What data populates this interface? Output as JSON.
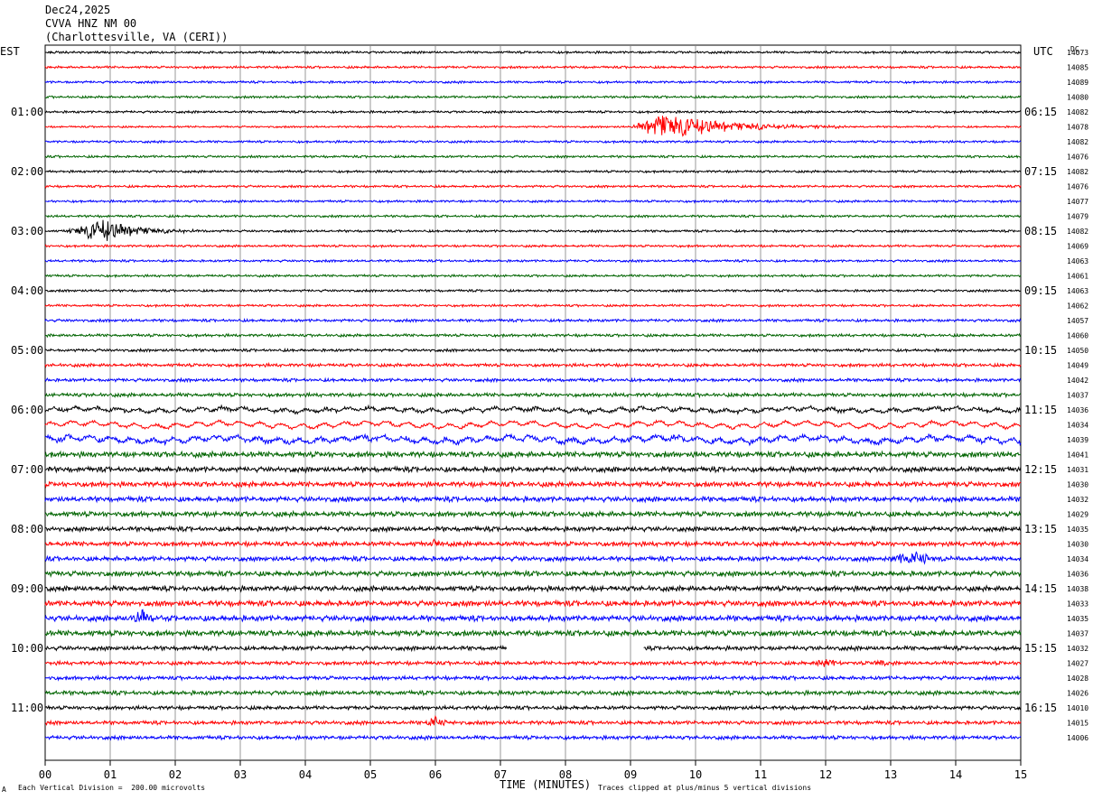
{
  "header": {
    "date": "Dec24,2025",
    "station": "CVVA HNZ NM 00",
    "location": "(Charlottesville, VA (CERI))"
  },
  "left_axis_label": "EST",
  "right_axis_label": "UTC",
  "dc_label": "DC",
  "xlabel": "TIME (MINUTES)",
  "footer_left": "Each Vertical Division =  200.00 microvolts",
  "footer_right": "Traces clipped at plus/minus 5 vertical divisions",
  "corner_mark": "A",
  "colors": {
    "black": "#000000",
    "red": "#ff0000",
    "blue": "#0000ff",
    "green": "#006400",
    "grid": "#808080"
  },
  "chart_data": {
    "type": "line",
    "xlabel": "TIME (MINUTES)",
    "xlim": [
      0,
      15
    ],
    "x_ticks": [
      "00",
      "01",
      "02",
      "03",
      "04",
      "05",
      "06",
      "07",
      "08",
      "09",
      "10",
      "11",
      "12",
      "13",
      "14",
      "15"
    ],
    "trace_color_cycle": [
      "black",
      "red",
      "blue",
      "green"
    ],
    "est_hour_labels": [
      "01:00",
      "02:00",
      "03:00",
      "04:00",
      "05:00",
      "06:00",
      "07:00",
      "08:00",
      "09:00",
      "10:00",
      "11:00"
    ],
    "utc_hour_labels": [
      "06:15",
      "07:15",
      "08:15",
      "09:15",
      "10:15",
      "11:15",
      "12:15",
      "13:15",
      "14:15",
      "15:15",
      "16:15"
    ],
    "dc_offsets": [
      "14073",
      "14085",
      "14089",
      "14080",
      "14082",
      "14078",
      "14082",
      "14076",
      "14082",
      "14076",
      "14077",
      "14079",
      "14082",
      "14069",
      "14063",
      "14061",
      "14063",
      "14062",
      "14057",
      "14060",
      "14050",
      "14049",
      "14042",
      "14037",
      "14036",
      "14034",
      "14039",
      "14041",
      "14031",
      "14030",
      "14032",
      "14029",
      "14035",
      "14030",
      "14034",
      "14036",
      "14038",
      "14033",
      "14035",
      "14037",
      "14032",
      "14027",
      "14028",
      "14026",
      "14010",
      "14015",
      "14006"
    ],
    "trace_noise_level": [
      0.5,
      0.5,
      0.5,
      0.5,
      0.5,
      0.4,
      0.5,
      0.5,
      0.5,
      0.5,
      0.5,
      0.5,
      0.5,
      0.5,
      0.5,
      0.5,
      0.5,
      0.5,
      0.6,
      0.6,
      0.6,
      0.7,
      0.7,
      0.8,
      0.8,
      0.6,
      1.0,
      1.2,
      1.1,
      1.1,
      1.1,
      1.1,
      1.0,
      1.0,
      1.0,
      1.1,
      1.1,
      1.2,
      1.2,
      1.2,
      0.9,
      0.8,
      0.8,
      0.9,
      0.8,
      0.8,
      0.8
    ],
    "events": [
      {
        "trace": 5,
        "start_min": 9.0,
        "end_min": 12.5,
        "peak_min": 9.5,
        "amplitude": 14
      },
      {
        "trace": 12,
        "start_min": 0.3,
        "end_min": 2.5,
        "peak_min": 0.9,
        "amplitude": 12
      },
      {
        "trace": 34,
        "start_min": 12.8,
        "end_min": 14.0,
        "peak_min": 13.4,
        "amplitude": 7
      },
      {
        "trace": 38,
        "start_min": 1.3,
        "end_min": 1.9,
        "peak_min": 1.5,
        "amplitude": 10
      },
      {
        "trace": 41,
        "start_min": 11.8,
        "end_min": 12.4,
        "peak_min": 12.0,
        "amplitude": 6
      },
      {
        "trace": 41,
        "start_min": 12.7,
        "end_min": 13.0,
        "peak_min": 12.85,
        "amplitude": 7
      },
      {
        "trace": 45,
        "start_min": 5.8,
        "end_min": 6.3,
        "peak_min": 6.0,
        "amplitude": 7
      },
      {
        "trace": 33,
        "start_min": 5.9,
        "end_min": 6.2,
        "peak_min": 6.0,
        "amplitude": 5
      }
    ],
    "long_period_traces": [
      {
        "trace": 25,
        "amplitude": 3.5
      },
      {
        "trace": 26,
        "amplitude": 3.5
      },
      {
        "trace": 24,
        "amplitude": 2.5
      }
    ],
    "gaps": [
      {
        "trace": 40,
        "start_min": 7.1,
        "end_min": 9.2
      }
    ]
  }
}
